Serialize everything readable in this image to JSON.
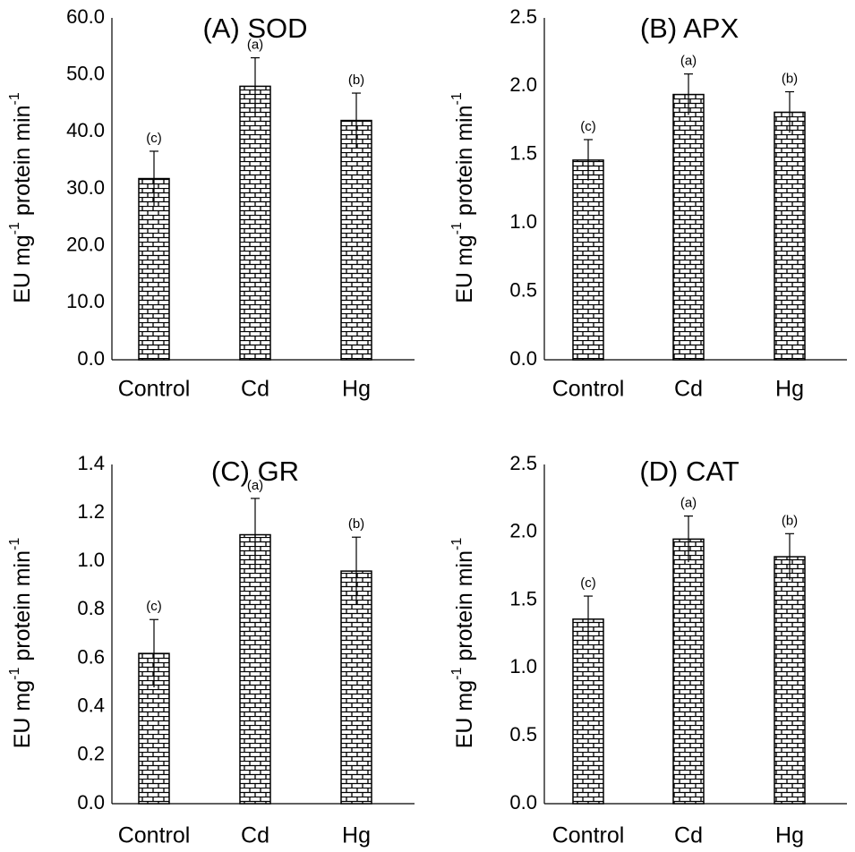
{
  "chart_data": [
    {
      "type": "bar",
      "title": "(A) SOD",
      "ylabel": "EU mg-1 protein min-1",
      "categories": [
        "Control",
        "Cd",
        "Hg"
      ],
      "values": [
        31.8,
        48.0,
        42.0
      ],
      "errors": [
        4.8,
        5.0,
        4.8
      ],
      "significance": [
        "(c)",
        "(a)",
        "(b)"
      ],
      "ylim": [
        0,
        60
      ],
      "yticks": [
        "0.0",
        "10.0",
        "20.0",
        "30.0",
        "40.0",
        "50.0",
        "60.0"
      ],
      "grid": false,
      "legend": "none"
    },
    {
      "type": "bar",
      "title": "(B) APX",
      "ylabel": "EU mg-1 protein min-1",
      "categories": [
        "Control",
        "Cd",
        "Hg"
      ],
      "values": [
        1.46,
        1.94,
        1.81
      ],
      "errors": [
        0.15,
        0.15,
        0.15
      ],
      "significance": [
        "(c)",
        "(a)",
        "(b)"
      ],
      "ylim": [
        0,
        2.5
      ],
      "yticks": [
        "0.0",
        "0.5",
        "1.0",
        "1.5",
        "2.0",
        "2.5"
      ],
      "grid": false,
      "legend": "none"
    },
    {
      "type": "bar",
      "title": "(C) GR",
      "ylabel": "EU mg-1 protein min-1",
      "categories": [
        "Control",
        "Cd",
        "Hg"
      ],
      "values": [
        0.62,
        1.11,
        0.96
      ],
      "errors": [
        0.14,
        0.15,
        0.14
      ],
      "significance": [
        "(c)",
        "(a)",
        "(b)"
      ],
      "ylim": [
        0,
        1.4
      ],
      "yticks": [
        "0.0",
        "0.2",
        "0.4",
        "0.6",
        "0.8",
        "1.0",
        "1.2",
        "1.4"
      ],
      "grid": false,
      "legend": "none"
    },
    {
      "type": "bar",
      "title": "(D) CAT",
      "ylabel": "EU mg-1 protein min-1",
      "categories": [
        "Control",
        "Cd",
        "Hg"
      ],
      "values": [
        1.36,
        1.95,
        1.82
      ],
      "errors": [
        0.17,
        0.17,
        0.17
      ],
      "significance": [
        "(c)",
        "(a)",
        "(b)"
      ],
      "ylim": [
        0,
        2.5
      ],
      "yticks": [
        "0.0",
        "0.5",
        "1.0",
        "1.5",
        "2.0",
        "2.5"
      ],
      "grid": false,
      "legend": "none"
    }
  ]
}
